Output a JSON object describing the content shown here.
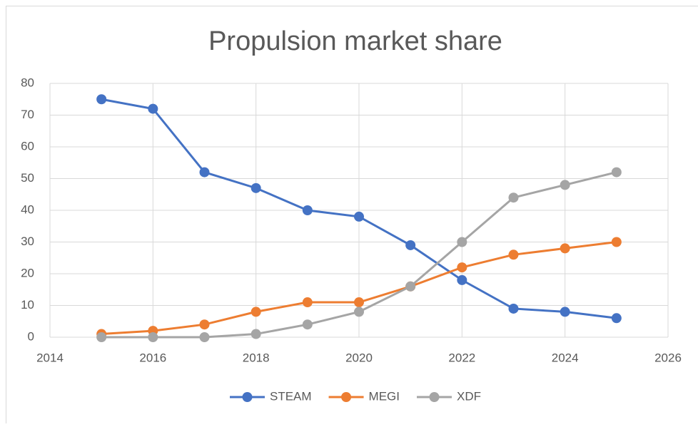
{
  "chart_data": {
    "type": "line",
    "title": "Propulsion market share",
    "x": [
      2015,
      2016,
      2017,
      2018,
      2019,
      2020,
      2021,
      2022,
      2023,
      2024,
      2025
    ],
    "series": [
      {
        "name": "STEAM",
        "color": "#4472c4",
        "values": [
          75,
          72,
          52,
          47,
          40,
          38,
          29,
          18,
          9,
          8,
          6
        ]
      },
      {
        "name": "MEGI",
        "color": "#ed7d31",
        "values": [
          1,
          2,
          4,
          8,
          11,
          11,
          16,
          22,
          26,
          28,
          30
        ]
      },
      {
        "name": "XDF",
        "color": "#a5a5a5",
        "values": [
          0,
          0,
          0,
          1,
          4,
          8,
          16,
          30,
          44,
          48,
          52
        ]
      }
    ],
    "xlim": [
      2014,
      2026
    ],
    "xticks": [
      2014,
      2016,
      2018,
      2020,
      2022,
      2024,
      2026
    ],
    "ylim": [
      0,
      80
    ],
    "yticks": [
      0,
      10,
      20,
      30,
      40,
      50,
      60,
      70,
      80
    ],
    "grid": true,
    "legend": "bottom"
  }
}
